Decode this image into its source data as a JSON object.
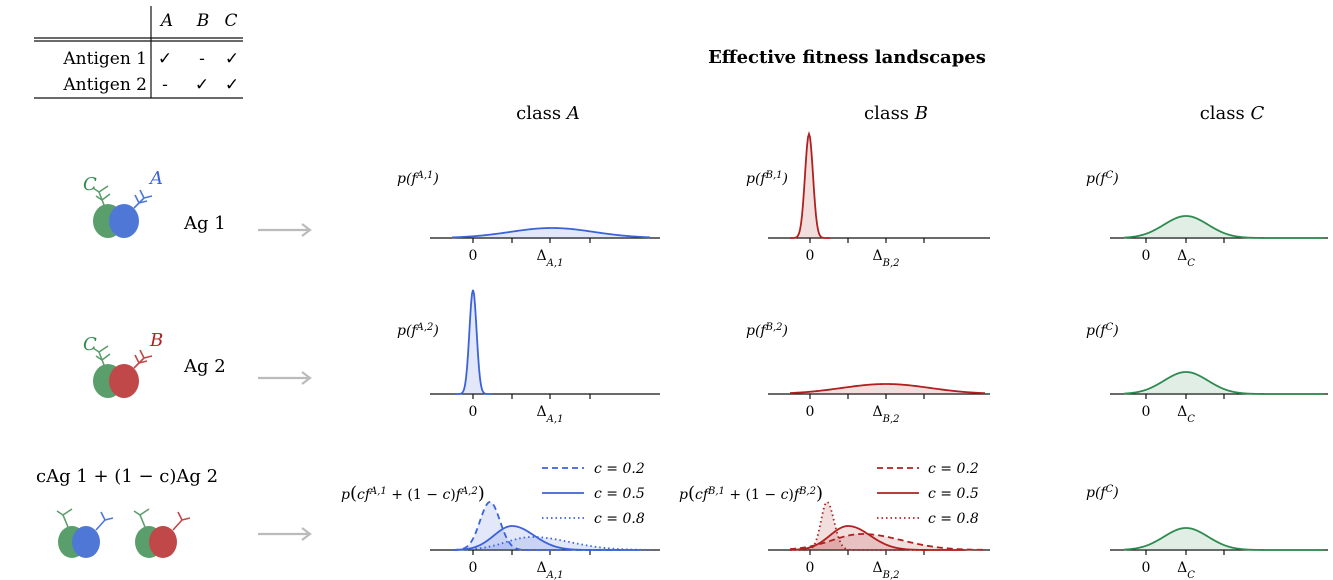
{
  "title": "Effective fitness landscapes",
  "classes": [
    {
      "prefix": "class ",
      "letter": "A"
    },
    {
      "prefix": "class ",
      "letter": "B"
    },
    {
      "prefix": "class ",
      "letter": "C"
    }
  ],
  "table": {
    "columns": [
      "A",
      "B",
      "C"
    ],
    "rows": [
      {
        "label": "Antigen 1",
        "cells": [
          "✓",
          "-",
          "✓"
        ]
      },
      {
        "label": "Antigen 2",
        "cells": [
          "-",
          "✓",
          "✓"
        ]
      }
    ]
  },
  "antigens": [
    {
      "label": "Ag 1",
      "left_class": "C",
      "right_class": "A"
    },
    {
      "label": "Ag 2",
      "left_class": "C",
      "right_class": "B"
    },
    {
      "label": "cAg 1 + (1 − c)Ag 2"
    }
  ],
  "arrow": "⟶",
  "colors": {
    "A": "#3b63d9",
    "B": "#b02020",
    "C": "#2e8b4f",
    "arrow": "#bbbbbb"
  },
  "legend_c": [
    "c = 0.2",
    "c = 0.5",
    "c = 0.8"
  ],
  "ticks": {
    "zero": "0",
    "dA": "Δ_{A,1}",
    "dB": "Δ_{B,2}",
    "dC": "Δ_C"
  },
  "ylabels": {
    "r1": [
      "p(f^{A,1})",
      "p(f^{B,1})",
      "p(f^C)"
    ],
    "r2": [
      "p(f^{A,2})",
      "p(f^{B,2})",
      "p(f^C)"
    ],
    "r3": [
      "p(cf^{A,1} + (1 − c)f^{A,2})",
      "p(cf^{B,1} + (1 − c)f^{B,2})",
      "p(f^C)"
    ]
  },
  "chart_data": {
    "type": "line",
    "panels": [
      {
        "row": 1,
        "class": "A",
        "series": [
          {
            "shape": "gaussian",
            "center": "Δ_{A,1}",
            "width": "broad"
          }
        ]
      },
      {
        "row": 1,
        "class": "B",
        "series": [
          {
            "shape": "gaussian",
            "center": 0,
            "width": "narrow"
          }
        ]
      },
      {
        "row": 1,
        "class": "C",
        "series": [
          {
            "shape": "gaussian",
            "center": "Δ_C",
            "width": "medium"
          }
        ]
      },
      {
        "row": 2,
        "class": "A",
        "series": [
          {
            "shape": "gaussian",
            "center": 0,
            "width": "narrow"
          }
        ]
      },
      {
        "row": 2,
        "class": "B",
        "series": [
          {
            "shape": "gaussian",
            "center": "Δ_{B,2}",
            "width": "broad"
          }
        ]
      },
      {
        "row": 2,
        "class": "C",
        "series": [
          {
            "shape": "gaussian",
            "center": "Δ_C",
            "width": "medium"
          }
        ]
      },
      {
        "row": 3,
        "class": "A",
        "series": [
          {
            "name": "c = 0.2"
          },
          {
            "name": "c = 0.5"
          },
          {
            "name": "c = 0.8"
          }
        ]
      },
      {
        "row": 3,
        "class": "B",
        "series": [
          {
            "name": "c = 0.2"
          },
          {
            "name": "c = 0.5"
          },
          {
            "name": "c = 0.8"
          }
        ]
      },
      {
        "row": 3,
        "class": "C",
        "series": [
          {
            "shape": "gaussian",
            "center": "Δ_C",
            "width": "medium"
          }
        ]
      }
    ]
  }
}
